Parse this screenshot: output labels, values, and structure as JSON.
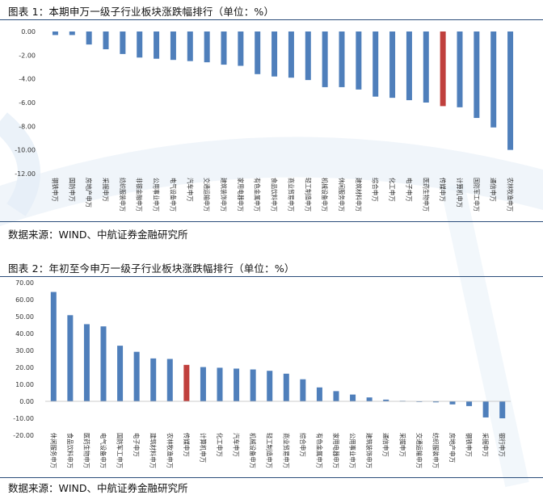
{
  "page": {
    "chart1_title": "图表 1：本期申万一级子行业板块涨跌幅排行（单位：%）",
    "chart1_source": "数据来源：WIND、中航证券金融研究所",
    "chart2_title": "图表 2：年初至今申万一级子行业板块涨跌幅排行（单位：%）",
    "chart2_source": "数据来源：WIND、中航证券金融研究所"
  },
  "chart_data": [
    {
      "type": "bar",
      "title": "图表 1：本期申万一级子行业板块涨跌幅排行（单位：%）",
      "ylim": [
        -12,
        0
      ],
      "yticks": [
        "0.00",
        "-2.00",
        "-4.00",
        "-6.00",
        "-8.00",
        "-10.00",
        "-12.00"
      ],
      "grid": false,
      "legend": "none",
      "categories": [
        "钢铁申万",
        "国防申万",
        "房地产申万",
        "采掘申万",
        "纺织服装申万",
        "非银金融申万",
        "公用事业申万",
        "电气设备申万",
        "汽车申万",
        "交通运输申万",
        "建筑装饰申万",
        "家用电器申万",
        "有色金属申万",
        "食品饮料申万",
        "商业贸易申万",
        "轻工制造申万",
        "机械设备申万",
        "休闲服务申万",
        "建筑材料申万",
        "综合申万",
        "化工申万",
        "电子申万",
        "医药生物申万",
        "传媒申万",
        "计算机申万",
        "国防军工申万",
        "通信申万",
        "农林牧渔申万"
      ],
      "values": [
        -0.3,
        -0.3,
        -1.1,
        -1.5,
        -1.9,
        -2.2,
        -2.3,
        -2.4,
        -2.5,
        -2.6,
        -2.8,
        -2.9,
        -3.6,
        -3.8,
        -3.9,
        -4.1,
        -4.7,
        -4.7,
        -4.9,
        -5.5,
        -5.6,
        -5.8,
        -6.0,
        -6.3,
        -6.4,
        -7.3,
        -8.1,
        -10.0
      ],
      "bar_color": "#4f7fbb",
      "highlight_color": "#c0403d",
      "highlight_index": 23
    },
    {
      "type": "bar",
      "title": "图表 2：年初至今申万一级子行业板块涨跌幅排行（单位：%）",
      "ylim": [
        -20,
        70
      ],
      "yticks": [
        "70.00",
        "60.00",
        "50.00",
        "40.00",
        "30.00",
        "20.00",
        "10.00",
        "0.00",
        "-10.00",
        "-20.00"
      ],
      "grid": false,
      "legend": "none",
      "categories": [
        "休闲服务申万",
        "食品饮料申万",
        "医药生物申万",
        "电气设备申万",
        "国防军工申万",
        "电子申万",
        "建筑材料申万",
        "农林牧渔申万",
        "传媒申万",
        "计算机申万",
        "化工申万",
        "汽车申万",
        "机械设备申万",
        "轻工制造申万",
        "商业贸易申万",
        "综合申万",
        "有色金属申万",
        "家用电器申万",
        "公用事业申万",
        "建筑装饰申万",
        "通信申万",
        "采掘申万",
        "交通运输申万",
        "纺织服装申万",
        "房地产申万",
        "钢铁申万",
        "采掘申万",
        "银行申万"
      ],
      "values": [
        64.5,
        50.8,
        45.5,
        44.2,
        32.8,
        29.2,
        25.3,
        25.0,
        21.5,
        20.2,
        19.8,
        19.3,
        18.8,
        18.0,
        16.3,
        13.0,
        8.2,
        6.0,
        4.0,
        2.3,
        1.0,
        0.3,
        -0.3,
        -0.6,
        -1.8,
        -2.8,
        -9.5,
        -10.0
      ],
      "bar_color": "#4f7fbb",
      "highlight_color": "#c0403d",
      "highlight_index": 8
    }
  ]
}
